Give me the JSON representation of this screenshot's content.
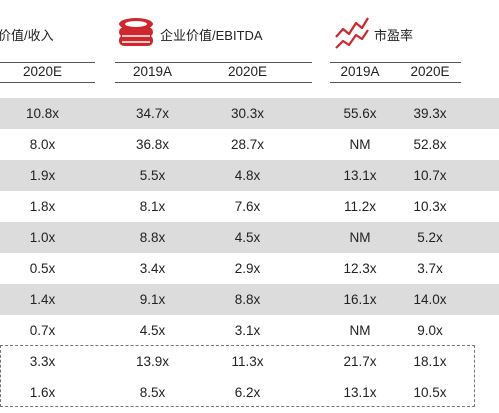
{
  "groups": {
    "ev_sales": {
      "title_visible": "价值/收入"
    },
    "ev_ebitda": {
      "title": "企业价值/EBITDA"
    },
    "pe": {
      "title": "市盈率"
    }
  },
  "columns": [
    "2020E",
    "2019A",
    "2020E",
    "2019A",
    "2020E"
  ],
  "rows": [
    [
      "10.8x",
      "34.7x",
      "30.3x",
      "55.6x",
      "39.3x"
    ],
    [
      "8.0x",
      "36.8x",
      "28.7x",
      "NM",
      "52.8x"
    ],
    [
      "1.9x",
      "5.5x",
      "4.8x",
      "13.1x",
      "10.7x"
    ],
    [
      "1.8x",
      "8.1x",
      "7.6x",
      "11.2x",
      "10.3x"
    ],
    [
      "1.0x",
      "8.8x",
      "4.5x",
      "NM",
      "5.2x"
    ],
    [
      "0.5x",
      "3.4x",
      "2.9x",
      "12.3x",
      "3.7x"
    ],
    [
      "1.4x",
      "9.1x",
      "8.8x",
      "16.1x",
      "14.0x"
    ],
    [
      "0.7x",
      "4.5x",
      "3.1x",
      "NM",
      "9.0x"
    ],
    [
      "3.3x",
      "13.9x",
      "11.3x",
      "21.7x",
      "18.1x"
    ],
    [
      "1.6x",
      "8.5x",
      "6.2x",
      "13.1x",
      "10.5x"
    ]
  ],
  "colors": {
    "accent": "#d0262d",
    "shade": "#dcdcdc"
  },
  "icons": [
    "coin-stack-icon",
    "trend-line-icon"
  ]
}
